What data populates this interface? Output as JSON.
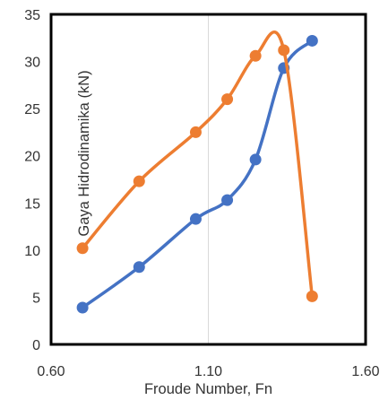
{
  "chart_data": {
    "type": "line",
    "title": "",
    "xlabel": "Froude Number, Fn",
    "ylabel": "Gaya Hidrodinamika (kN)",
    "xlim": [
      0.6,
      1.6
    ],
    "ylim": [
      0,
      35
    ],
    "xticks": [
      "0.60",
      "1.10",
      "1.60"
    ],
    "yticks": [
      "0",
      "5",
      "10",
      "15",
      "20",
      "25",
      "30",
      "35"
    ],
    "grid": "vertical",
    "smooth": true,
    "series": [
      {
        "color": "#4472C4",
        "x": [
          0.7,
          0.88,
          1.06,
          1.16,
          1.25,
          1.34,
          1.43
        ],
        "y": [
          3.9,
          8.2,
          13.3,
          15.3,
          19.6,
          29.3,
          32.2
        ]
      },
      {
        "color": "#ED7D31",
        "x": [
          0.7,
          0.88,
          1.06,
          1.16,
          1.25,
          1.34,
          1.43
        ],
        "y": [
          10.2,
          17.3,
          22.5,
          26.0,
          30.6,
          31.2,
          5.1
        ]
      }
    ]
  }
}
